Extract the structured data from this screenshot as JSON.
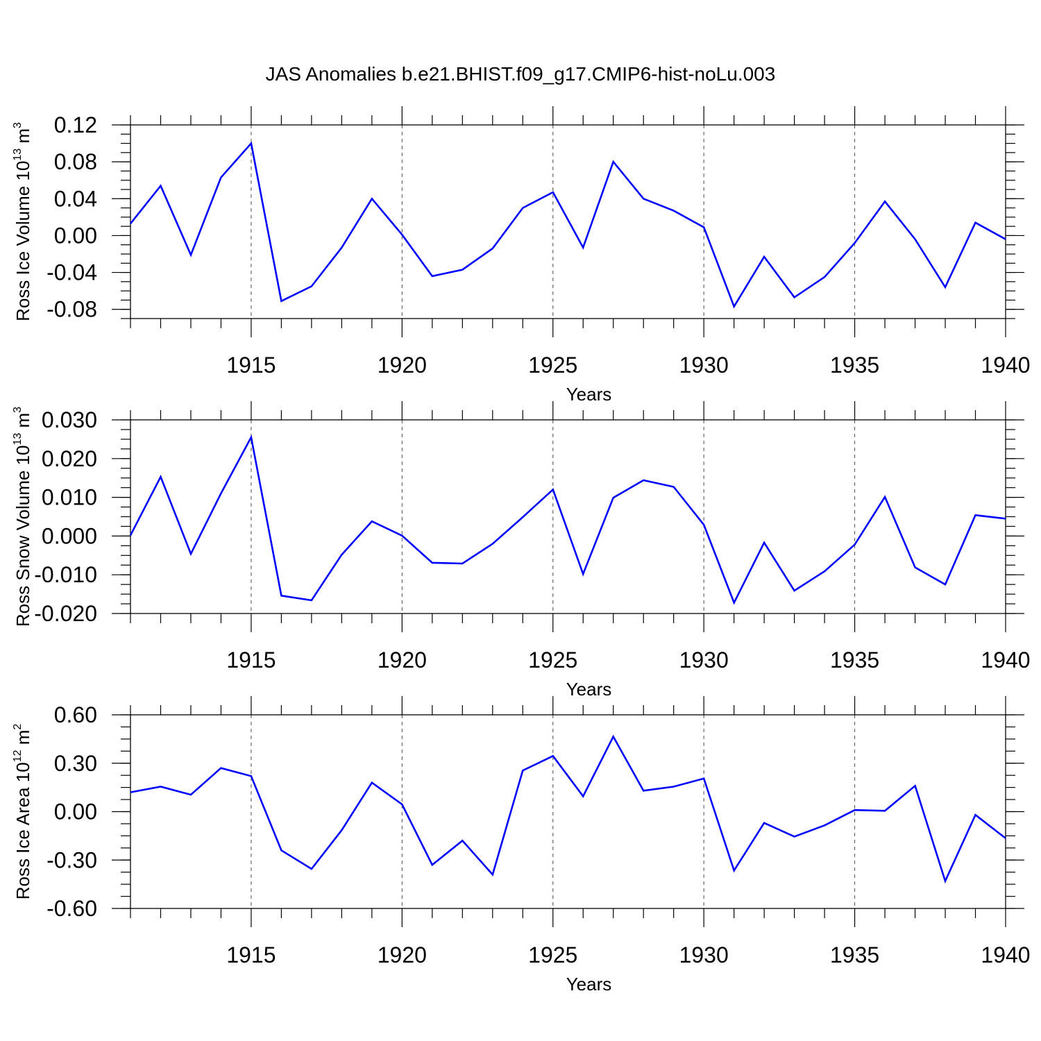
{
  "figure_title": "JAS Anomalies b.e21.BHIST.f09_g17.CMIP6-hist-noLu.003",
  "colors": {
    "line": "#0000ff",
    "frame": "#000000",
    "grid": "#000000"
  },
  "chart_data": [
    {
      "type": "line",
      "xlabel": "Years",
      "ylabel": {
        "prefix": "Ross Ice Volume 10",
        "exp": "13",
        "unit": " m",
        "unit_exp": "3"
      },
      "xlim": [
        1911,
        1940
      ],
      "ylim": [
        -0.09,
        0.12
      ],
      "xticks": [
        "1915",
        "1920",
        "1925",
        "1930",
        "1935",
        "1940"
      ],
      "yticks": [
        "-0.08",
        "-0.04",
        "0.00",
        "0.04",
        "0.08",
        "0.12"
      ],
      "grid": "vertical dashed at major x ticks",
      "x": [
        1911,
        1912,
        1913,
        1914,
        1915,
        1916,
        1917,
        1918,
        1919,
        1920,
        1921,
        1922,
        1923,
        1924,
        1925,
        1926,
        1927,
        1928,
        1929,
        1930,
        1931,
        1932,
        1933,
        1934,
        1935,
        1936,
        1937,
        1938,
        1939,
        1940
      ],
      "values": [
        0.013,
        0.054,
        -0.021,
        0.063,
        0.1,
        -0.071,
        -0.055,
        -0.013,
        0.04,
        0.001,
        -0.044,
        -0.037,
        -0.014,
        0.03,
        0.047,
        -0.013,
        0.08,
        0.04,
        0.027,
        0.009,
        -0.077,
        -0.023,
        -0.067,
        -0.045,
        -0.008,
        0.037,
        -0.004,
        -0.056,
        0.014,
        -0.004
      ]
    },
    {
      "type": "line",
      "xlabel": "Years",
      "ylabel": {
        "prefix": "Ross Snow Volume 10",
        "exp": "13",
        "unit": " m",
        "unit_exp": "3"
      },
      "xlim": [
        1911,
        1940
      ],
      "ylim": [
        -0.02,
        0.03
      ],
      "xticks": [
        "1915",
        "1920",
        "1925",
        "1930",
        "1935",
        "1940"
      ],
      "yticks": [
        "-0.020",
        "-0.010",
        "0.000",
        "0.010",
        "0.020",
        "0.030"
      ],
      "grid": "vertical dashed at major x ticks",
      "x": [
        1911,
        1912,
        1913,
        1914,
        1915,
        1916,
        1917,
        1918,
        1919,
        1920,
        1921,
        1922,
        1923,
        1924,
        1925,
        1926,
        1927,
        1928,
        1929,
        1930,
        1931,
        1932,
        1933,
        1934,
        1935,
        1936,
        1937,
        1938,
        1939,
        1940
      ],
      "values": [
        0.0002,
        0.0153,
        -0.0046,
        0.011,
        0.0255,
        -0.0154,
        -0.0166,
        -0.0048,
        0.0038,
        0.0001,
        -0.0069,
        -0.0071,
        -0.002,
        0.0049,
        0.012,
        -0.0098,
        0.0099,
        0.0144,
        0.0127,
        0.0029,
        -0.0172,
        -0.0017,
        -0.0141,
        -0.0091,
        -0.0022,
        0.0101,
        -0.0081,
        -0.0125,
        0.0054,
        0.0045
      ]
    },
    {
      "type": "line",
      "xlabel": "Years",
      "ylabel": {
        "prefix": "Ross Ice Area 10",
        "exp": "12",
        "unit": " m",
        "unit_exp": "2"
      },
      "xlim": [
        1911,
        1940
      ],
      "ylim": [
        -0.6,
        0.6
      ],
      "xticks": [
        "1915",
        "1920",
        "1925",
        "1930",
        "1935",
        "1940"
      ],
      "yticks": [
        "-0.60",
        "-0.30",
        "0.00",
        "0.30",
        "0.60"
      ],
      "grid": "vertical dashed at major x ticks",
      "x": [
        1911,
        1912,
        1913,
        1914,
        1915,
        1916,
        1917,
        1918,
        1919,
        1920,
        1921,
        1922,
        1923,
        1924,
        1925,
        1926,
        1927,
        1928,
        1929,
        1930,
        1931,
        1932,
        1933,
        1934,
        1935,
        1936,
        1937,
        1938,
        1939,
        1940
      ],
      "values": [
        0.12,
        0.155,
        0.105,
        0.27,
        0.22,
        -0.24,
        -0.355,
        -0.115,
        0.18,
        0.045,
        -0.33,
        -0.18,
        -0.39,
        0.255,
        0.345,
        0.095,
        0.465,
        0.13,
        0.155,
        0.205,
        -0.365,
        -0.07,
        -0.155,
        -0.085,
        0.01,
        0.005,
        0.16,
        -0.43,
        -0.02,
        -0.165
      ]
    }
  ]
}
